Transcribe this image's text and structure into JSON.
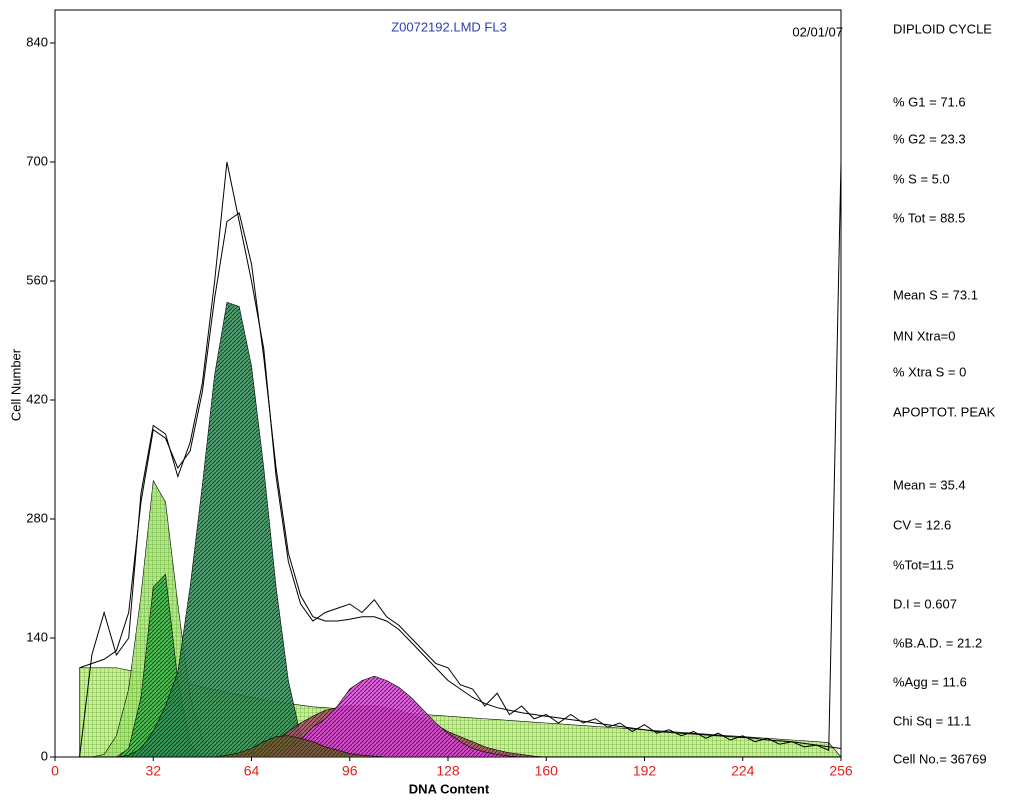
{
  "chart_data": {
    "type": "area",
    "title": "Z0072192.LMD FL3",
    "date": "02/01/07",
    "xlabel": "DNA Content",
    "ylabel": "Cell Number",
    "xlim": [
      0,
      256
    ],
    "xticks": [
      0,
      32,
      64,
      96,
      128,
      160,
      192,
      224,
      256
    ],
    "ylim": [
      0,
      840
    ],
    "yticks": [
      0,
      140,
      280,
      420,
      560,
      700,
      840
    ],
    "x": [
      8,
      12,
      16,
      20,
      24,
      28,
      32,
      36,
      40,
      44,
      48,
      52,
      56,
      60,
      64,
      68,
      72,
      76,
      80,
      84,
      88,
      92,
      96,
      100,
      104,
      108,
      112,
      116,
      120,
      124,
      128,
      132,
      136,
      140,
      144,
      148,
      152,
      156,
      160,
      164,
      168,
      172,
      176,
      180,
      184,
      188,
      192,
      196,
      200,
      204,
      208,
      212,
      216,
      220,
      224,
      228,
      232,
      236,
      240,
      244,
      248,
      252,
      256
    ],
    "series": [
      {
        "color": "#b8f07c",
        "style": "area",
        "values": [
          105,
          105,
          105,
          105,
          102,
          100,
          97,
          93,
          90,
          86,
          82,
          79,
          76,
          73,
          70,
          67,
          65,
          63,
          61,
          59,
          58,
          57,
          56,
          55,
          54,
          53,
          52,
          51,
          50,
          49,
          48,
          47,
          46,
          45,
          44,
          43,
          42,
          41,
          40,
          39,
          38,
          37,
          36,
          35,
          34,
          33,
          32,
          31,
          30,
          29,
          28,
          27,
          26,
          25,
          24,
          23,
          22,
          21,
          20,
          19,
          18,
          17,
          0
        ]
      },
      {
        "color": "#9ee66b",
        "style": "area",
        "values": [
          0,
          0,
          3,
          25,
          80,
          190,
          325,
          300,
          180,
          70,
          20,
          5,
          0,
          0,
          0,
          0,
          0,
          0,
          0,
          0,
          0,
          0,
          0,
          0,
          0,
          0,
          0,
          0,
          0,
          0,
          0,
          0,
          0,
          0,
          0,
          0,
          0,
          0,
          0,
          0,
          0,
          0,
          0,
          0,
          0,
          0,
          0,
          0,
          0,
          0,
          0,
          0,
          0,
          0,
          0,
          0,
          0,
          0,
          0,
          0,
          0,
          0,
          0
        ]
      },
      {
        "color": "#3cb44b",
        "style": "area",
        "values": [
          0,
          0,
          0,
          0,
          10,
          70,
          200,
          215,
          90,
          15,
          0,
          0,
          0,
          0,
          0,
          0,
          0,
          0,
          0,
          0,
          0,
          0,
          0,
          0,
          0,
          0,
          0,
          0,
          0,
          0,
          0,
          0,
          0,
          0,
          0,
          0,
          0,
          0,
          0,
          0,
          0,
          0,
          0,
          0,
          0,
          0,
          0,
          0,
          0,
          0,
          0,
          0,
          0,
          0,
          0,
          0,
          0,
          0,
          0,
          0,
          0,
          0,
          0
        ]
      },
      {
        "color": "#2e8b57",
        "style": "area",
        "values": [
          0,
          0,
          0,
          0,
          2,
          10,
          30,
          60,
          100,
          200,
          320,
          450,
          535,
          530,
          460,
          340,
          200,
          90,
          25,
          5,
          0,
          0,
          0,
          0,
          0,
          0,
          0,
          0,
          0,
          0,
          0,
          0,
          0,
          0,
          0,
          0,
          0,
          0,
          0,
          0,
          0,
          0,
          0,
          0,
          0,
          0,
          0,
          0,
          0,
          0,
          0,
          0,
          0,
          0,
          0,
          0,
          0,
          0,
          0,
          0,
          0,
          0,
          0
        ]
      },
      {
        "color": "#b04a6a",
        "style": "area",
        "values": [
          0,
          0,
          0,
          0,
          0,
          0,
          0,
          0,
          0,
          0,
          0,
          0,
          0,
          2,
          5,
          10,
          20,
          30,
          40,
          48,
          55,
          58,
          60,
          60,
          60,
          58,
          55,
          50,
          45,
          38,
          30,
          24,
          18,
          12,
          8,
          5,
          3,
          1,
          0,
          0,
          0,
          0,
          0,
          0,
          0,
          0,
          0,
          0,
          0,
          0,
          0,
          0,
          0,
          0,
          0,
          0,
          0,
          0,
          0,
          0,
          0,
          0,
          0
        ]
      },
      {
        "color": "#e040e0",
        "style": "area",
        "values": [
          0,
          0,
          0,
          0,
          0,
          0,
          0,
          0,
          0,
          0,
          0,
          0,
          0,
          0,
          0,
          0,
          5,
          10,
          20,
          35,
          45,
          60,
          80,
          90,
          95,
          90,
          82,
          70,
          55,
          40,
          28,
          18,
          10,
          6,
          3,
          1,
          0,
          0,
          0,
          0,
          0,
          0,
          0,
          0,
          0,
          0,
          0,
          0,
          0,
          0,
          0,
          0,
          0,
          0,
          0,
          0,
          0,
          0,
          0,
          0,
          0,
          0,
          0
        ]
      },
      {
        "color": "#6b5a2a",
        "style": "area",
        "values": [
          0,
          0,
          0,
          0,
          0,
          0,
          0,
          0,
          0,
          0,
          0,
          0,
          2,
          5,
          10,
          18,
          24,
          25,
          22,
          18,
          12,
          8,
          4,
          2,
          1,
          0,
          0,
          0,
          0,
          0,
          0,
          0,
          0,
          0,
          0,
          0,
          0,
          0,
          0,
          0,
          0,
          0,
          0,
          0,
          0,
          0,
          0,
          0,
          0,
          0,
          0,
          0,
          0,
          0,
          0,
          0,
          0,
          0,
          0,
          0,
          0,
          0,
          0
        ]
      },
      {
        "color": "#000000",
        "style": "line",
        "values": [
          105,
          110,
          115,
          125,
          170,
          300,
          385,
          375,
          340,
          360,
          430,
          540,
          630,
          640,
          580,
          470,
          340,
          240,
          190,
          165,
          160,
          160,
          162,
          165,
          165,
          160,
          150,
          135,
          120,
          105,
          90,
          80,
          70,
          63,
          58,
          55,
          52,
          50,
          48,
          46,
          44,
          42,
          40,
          38,
          36,
          34,
          32,
          30,
          29,
          28,
          27,
          26,
          25,
          24,
          23,
          22,
          20,
          19,
          18,
          16,
          14,
          12,
          10
        ]
      },
      {
        "color": "#000000",
        "style": "line",
        "values": [
          0,
          120,
          170,
          120,
          140,
          310,
          390,
          380,
          330,
          370,
          440,
          560,
          700,
          630,
          560,
          480,
          330,
          230,
          180,
          160,
          170,
          175,
          180,
          170,
          185,
          165,
          155,
          140,
          125,
          110,
          105,
          85,
          80,
          60,
          75,
          50,
          60,
          45,
          50,
          40,
          50,
          40,
          45,
          35,
          40,
          30,
          38,
          28,
          32,
          25,
          30,
          22,
          28,
          20,
          25,
          18,
          22,
          15,
          18,
          12,
          14,
          8,
          700
        ]
      }
    ],
    "panel": [
      "DIPLOID CYCLE",
      "% G1 = 71.6",
      " % G2 = 23.3",
      "% S = 5.0",
      "% Tot = 88.5",
      "Mean S = 73.1",
      "MN Xtra=0",
      "% Xtra S = 0",
      "APOPTOT. PEAK",
      "Mean = 35.4",
      "CV = 12.6",
      "%Tot=11.5",
      "D.I  = 0.607",
      "%B.A.D. = 21.2",
      "%Agg = 11.6",
      "Chi Sq = 11.1",
      "Cell No.= 36769"
    ]
  }
}
